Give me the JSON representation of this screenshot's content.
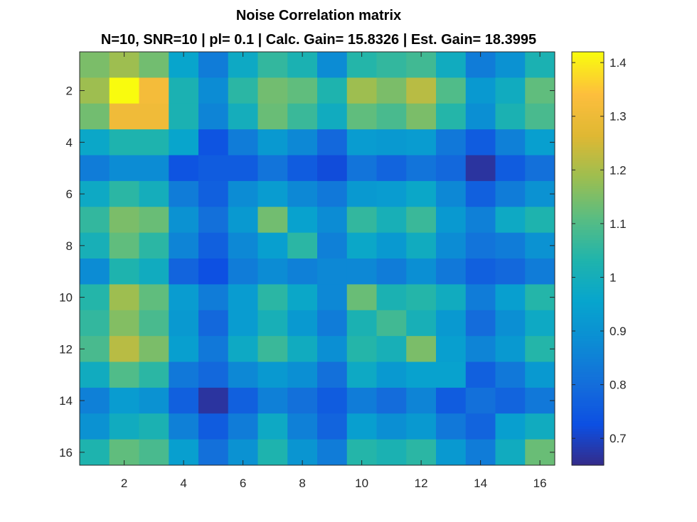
{
  "chart_data": {
    "type": "heatmap",
    "title": "Noise Correlation matrix",
    "subtitle": "N=10, SNR=10 | pl= 0.1 | Calc. Gain= 15.8326 | Est. Gain= 18.3995",
    "xlabel": "",
    "ylabel": "",
    "colormap": "parula",
    "clim": [
      0.65,
      1.42
    ],
    "xlim": [
      0.5,
      16.5
    ],
    "ylim": [
      0.5,
      16.5
    ],
    "x_ticks": [
      2,
      4,
      6,
      8,
      10,
      12,
      14,
      16
    ],
    "y_ticks": [
      2,
      4,
      6,
      8,
      10,
      12,
      14,
      16
    ],
    "colorbar_ticks": [
      0.7,
      0.8,
      0.9,
      1,
      1.1,
      1.2,
      1.3,
      1.4
    ],
    "colorbar_tick_labels": [
      "0.7",
      "0.8",
      "0.9",
      "1",
      "1.1",
      "1.2",
      "1.3",
      "1.4"
    ],
    "rows": [
      1,
      2,
      3,
      4,
      5,
      6,
      7,
      8,
      9,
      10,
      11,
      12,
      13,
      14,
      15,
      16
    ],
    "columns": [
      1,
      2,
      3,
      4,
      5,
      6,
      7,
      8,
      9,
      10,
      11,
      12,
      13,
      14,
      15,
      16
    ],
    "values": [
      [
        1.15,
        1.19,
        1.14,
        0.96,
        0.84,
        0.98,
        1.06,
        1.02,
        0.88,
        1.04,
        1.06,
        1.08,
        0.99,
        0.84,
        0.9,
        1.02
      ],
      [
        1.19,
        1.42,
        1.32,
        1.02,
        0.88,
        1.05,
        1.14,
        1.12,
        1.03,
        1.19,
        1.15,
        1.22,
        1.1,
        0.92,
        0.99,
        1.12
      ],
      [
        1.14,
        1.31,
        1.31,
        1.02,
        0.86,
        1.0,
        1.13,
        1.07,
        0.99,
        1.12,
        1.09,
        1.15,
        1.04,
        0.89,
        1.02,
        1.09
      ],
      [
        0.97,
        1.03,
        1.03,
        0.96,
        0.74,
        0.84,
        0.92,
        0.87,
        0.79,
        0.93,
        0.92,
        0.93,
        0.83,
        0.76,
        0.85,
        0.94
      ],
      [
        0.84,
        0.88,
        0.88,
        0.74,
        0.76,
        0.76,
        0.82,
        0.76,
        0.72,
        0.82,
        0.78,
        0.82,
        0.79,
        0.67,
        0.76,
        0.81
      ],
      [
        0.98,
        1.05,
        1.0,
        0.84,
        0.77,
        0.88,
        0.93,
        0.87,
        0.83,
        0.92,
        0.93,
        0.97,
        0.87,
        0.77,
        0.84,
        0.9
      ],
      [
        1.06,
        1.15,
        1.13,
        0.9,
        0.81,
        0.92,
        1.14,
        0.95,
        0.88,
        1.06,
        1.01,
        1.07,
        0.92,
        0.85,
        0.98,
        1.03
      ],
      [
        1.01,
        1.12,
        1.05,
        0.86,
        0.77,
        0.87,
        0.94,
        1.05,
        0.85,
        0.97,
        0.92,
        0.99,
        0.88,
        0.82,
        0.84,
        0.9
      ],
      [
        0.88,
        1.03,
        0.99,
        0.78,
        0.73,
        0.84,
        0.88,
        0.85,
        0.87,
        0.87,
        0.84,
        0.89,
        0.83,
        0.77,
        0.79,
        0.84
      ],
      [
        1.04,
        1.19,
        1.12,
        0.93,
        0.84,
        0.93,
        1.05,
        0.97,
        0.87,
        1.13,
        1.02,
        1.04,
        0.99,
        0.84,
        0.94,
        1.04
      ],
      [
        1.06,
        1.16,
        1.09,
        0.92,
        0.79,
        0.93,
        1.01,
        0.92,
        0.84,
        1.02,
        1.08,
        1.01,
        0.92,
        0.8,
        0.89,
        0.98
      ],
      [
        1.09,
        1.22,
        1.15,
        0.94,
        0.83,
        0.98,
        1.07,
        0.99,
        0.89,
        1.04,
        1.01,
        1.15,
        0.94,
        0.86,
        0.92,
        1.04
      ],
      [
        0.99,
        1.1,
        1.05,
        0.83,
        0.79,
        0.87,
        0.92,
        0.89,
        0.81,
        0.98,
        0.92,
        0.95,
        0.95,
        0.77,
        0.83,
        0.92
      ],
      [
        0.85,
        0.93,
        0.9,
        0.77,
        0.67,
        0.77,
        0.85,
        0.81,
        0.76,
        0.84,
        0.8,
        0.86,
        0.76,
        0.81,
        0.78,
        0.83
      ],
      [
        0.9,
        0.99,
        1.02,
        0.85,
        0.76,
        0.84,
        0.98,
        0.85,
        0.78,
        0.94,
        0.89,
        0.92,
        0.83,
        0.78,
        0.94,
        0.99
      ],
      [
        1.03,
        1.12,
        1.09,
        0.94,
        0.81,
        0.9,
        1.03,
        0.91,
        0.84,
        1.04,
        1.02,
        1.05,
        0.92,
        0.84,
        0.99,
        1.13
      ]
    ]
  }
}
